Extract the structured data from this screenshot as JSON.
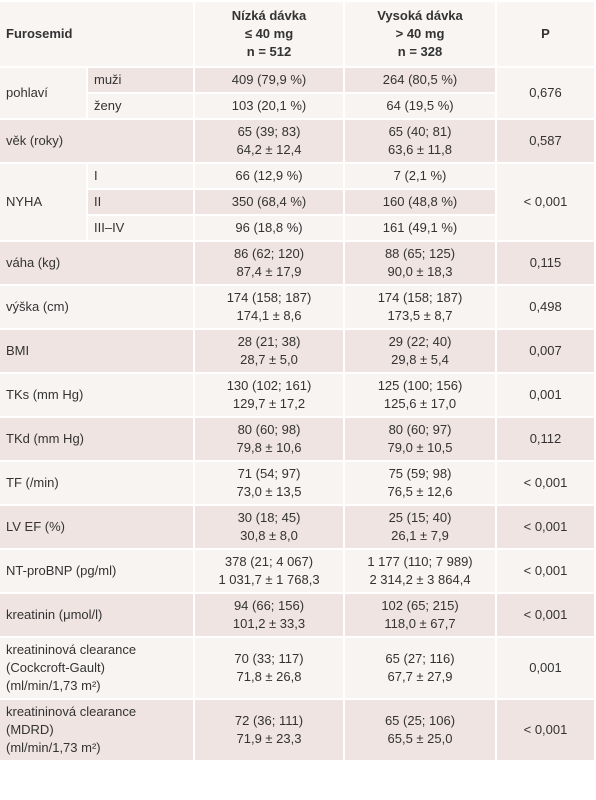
{
  "header": {
    "col0": "Furosemid",
    "col1": [
      "Nízká dávka",
      "≤ 40 mg",
      "n = 512"
    ],
    "col2": [
      "Vysoká dávka",
      "> 40 mg",
      "n = 328"
    ],
    "col3": "P"
  },
  "groups": [
    {
      "label": [
        "pohlaví"
      ],
      "p": "0,676",
      "rows": [
        {
          "sub": "muži",
          "low": [
            "409 (79,9 %)"
          ],
          "high": [
            "264 (80,5 %)"
          ]
        },
        {
          "sub": "ženy",
          "low": [
            "103 (20,1 %)"
          ],
          "high": [
            "64 (19,5 %)"
          ]
        }
      ]
    },
    {
      "label": [
        "věk (roky)"
      ],
      "p": "0,587",
      "rows": [
        {
          "low": [
            "65 (39; 83)",
            "64,2 ± 12,4"
          ],
          "high": [
            "65 (40; 81)",
            "63,6 ± 11,8"
          ]
        }
      ]
    },
    {
      "label": [
        "NYHA"
      ],
      "p": "< 0,001",
      "rows": [
        {
          "sub": "I",
          "low": [
            "66 (12,9 %)"
          ],
          "high": [
            "7 (2,1 %)"
          ]
        },
        {
          "sub": "II",
          "low": [
            "350 (68,4 %)"
          ],
          "high": [
            "160 (48,8 %)"
          ]
        },
        {
          "sub": "III–IV",
          "low": [
            "96 (18,8 %)"
          ],
          "high": [
            "161 (49,1 %)"
          ]
        }
      ]
    },
    {
      "label": [
        "váha (kg)"
      ],
      "p": "0,115",
      "rows": [
        {
          "low": [
            "86 (62; 120)",
            "87,4 ± 17,9"
          ],
          "high": [
            "88 (65; 125)",
            "90,0 ± 18,3"
          ]
        }
      ]
    },
    {
      "label": [
        "výška (cm)"
      ],
      "p": "0,498",
      "rows": [
        {
          "low": [
            "174 (158; 187)",
            "174,1 ± 8,6"
          ],
          "high": [
            "174 (158; 187)",
            "173,5 ± 8,7"
          ]
        }
      ]
    },
    {
      "label": [
        "BMI"
      ],
      "p": "0,007",
      "rows": [
        {
          "low": [
            "28 (21; 38)",
            "28,7 ± 5,0"
          ],
          "high": [
            "29 (22; 40)",
            "29,8 ± 5,4"
          ]
        }
      ]
    },
    {
      "label": [
        "TKs (mm Hg)"
      ],
      "p": "0,001",
      "rows": [
        {
          "low": [
            "130 (102; 161)",
            "129,7 ± 17,2"
          ],
          "high": [
            "125 (100; 156)",
            "125,6 ± 17,0"
          ]
        }
      ]
    },
    {
      "label": [
        "TKd (mm Hg)"
      ],
      "p": "0,112",
      "rows": [
        {
          "low": [
            "80 (60; 98)",
            "79,8 ± 10,6"
          ],
          "high": [
            "80 (60; 97)",
            "79,0 ± 10,5"
          ]
        }
      ]
    },
    {
      "label": [
        "TF (/min)"
      ],
      "p": "< 0,001",
      "rows": [
        {
          "low": [
            "71 (54; 97)",
            "73,0 ± 13,5"
          ],
          "high": [
            "75 (59; 98)",
            "76,5 ± 12,6"
          ]
        }
      ]
    },
    {
      "label": [
        "LV EF (%)"
      ],
      "p": "< 0,001",
      "rows": [
        {
          "low": [
            "30 (18; 45)",
            "30,8 ± 8,0"
          ],
          "high": [
            "25 (15; 40)",
            "26,1 ± 7,9"
          ]
        }
      ]
    },
    {
      "label": [
        "NT-proBNP (pg/ml)"
      ],
      "p": "< 0,001",
      "rows": [
        {
          "low": [
            "378 (21; 4 067)",
            "1 031,7 ± 1 768,3"
          ],
          "high": [
            "1 177 (110; 7 989)",
            "2 314,2 ± 3 864,4"
          ]
        }
      ]
    },
    {
      "label": [
        "kreatinin (μmol/l)"
      ],
      "p": "< 0,001",
      "rows": [
        {
          "low": [
            "94 (66; 156)",
            "101,2 ± 33,3"
          ],
          "high": [
            "102 (65; 215)",
            "118,0 ± 67,7"
          ]
        }
      ]
    },
    {
      "label": [
        "kreatininová clearance",
        "(Cockcroft-Gault)",
        "(ml/min/1,73 m²)"
      ],
      "p": "0,001",
      "rows": [
        {
          "low": [
            "70 (33; 117)",
            "71,8 ± 26,8"
          ],
          "high": [
            "65 (27; 116)",
            "67,7 ± 27,9"
          ]
        }
      ]
    },
    {
      "label": [
        "kreatininová clearance",
        "(MDRD)",
        "(ml/min/1,73 m²)"
      ],
      "p": "< 0,001",
      "rows": [
        {
          "low": [
            "72 (36; 111)",
            "71,9 ± 23,3"
          ],
          "high": [
            "65 (25; 106)",
            "65,5 ± 25,0"
          ]
        }
      ]
    }
  ]
}
